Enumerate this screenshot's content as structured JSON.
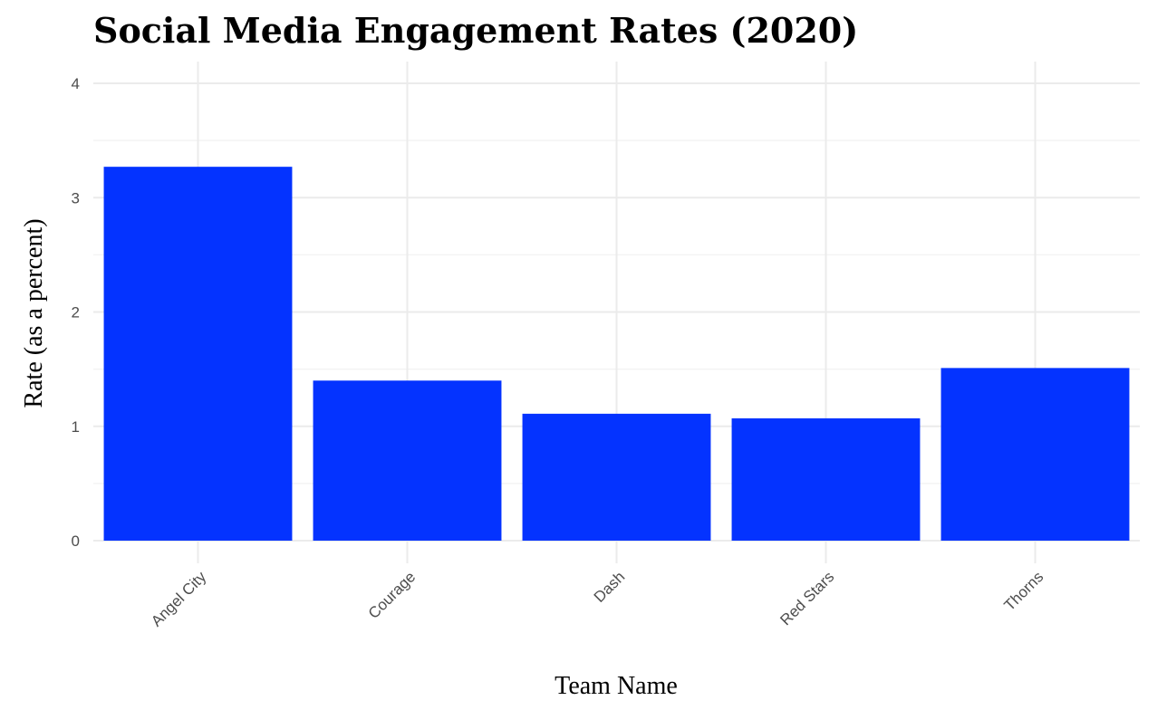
{
  "chart_data": {
    "type": "bar",
    "title": "Social Media Engagement Rates (2020)",
    "xlabel": "Team Name",
    "ylabel": "Rate (as a percent)",
    "categories": [
      "Angel City",
      "Courage",
      "Dash",
      "Red Stars",
      "Thorns"
    ],
    "values": [
      3.27,
      1.4,
      1.11,
      1.07,
      1.51
    ],
    "ylim": [
      0,
      4
    ],
    "yticks": [
      0,
      1,
      2,
      3,
      4
    ],
    "bar_color": "#0433FF",
    "grid": true,
    "legend": "none"
  }
}
